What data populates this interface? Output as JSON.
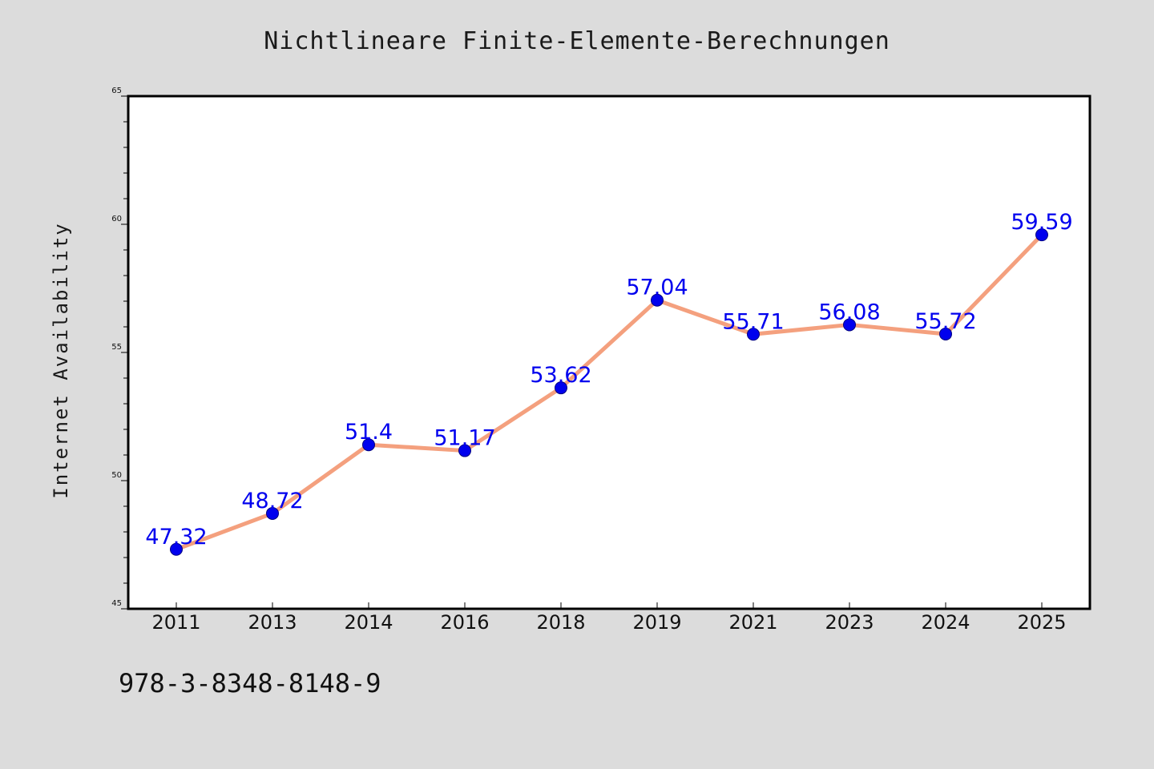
{
  "footer": {
    "code": "978-3-8348-8148-9"
  },
  "colors": {
    "background": "#dcdcdc",
    "plot_background": "#ffffff",
    "line": "#f4a07e",
    "marker": "#0000ee",
    "data_label": "#0000ee"
  },
  "chart_data": {
    "type": "line",
    "title": "Nichtlineare Finite-Elemente-Berechnungen",
    "xlabel": "",
    "ylabel": "Internet Availability",
    "categories": [
      "2011",
      "2013",
      "2014",
      "2016",
      "2018",
      "2019",
      "2021",
      "2023",
      "2024",
      "2025"
    ],
    "series": [
      {
        "values": [
          47.32,
          48.72,
          51.4,
          51.17,
          53.62,
          57.04,
          55.71,
          56.08,
          55.72,
          59.59
        ],
        "data_labels": [
          "47.32",
          "48.72",
          "51.4",
          "51.17",
          "53.62",
          "57.04",
          "55.71",
          "56.08",
          "55.72",
          "59.59"
        ]
      }
    ],
    "ylim": [
      45,
      65
    ],
    "y_ticks": [
      "45",
      "50",
      "55",
      "60",
      "65"
    ],
    "grid": false,
    "legend": "none"
  }
}
